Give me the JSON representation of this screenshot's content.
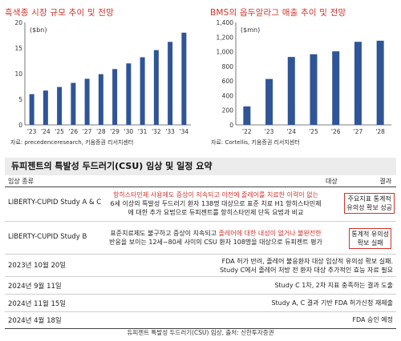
{
  "chart_data": [
    {
      "type": "bar",
      "title": "흑색종 시장 규모 추이 및 전망",
      "unit_label": "($bn)",
      "categories": [
        "'23",
        "'24",
        "'25",
        "'26",
        "'27",
        "'28",
        "'29",
        "'30",
        "'31",
        "'32",
        "'33",
        "'34"
      ],
      "values": [
        6.0,
        6.7,
        7.4,
        8.2,
        9.0,
        9.9,
        10.9,
        12.0,
        13.2,
        14.6,
        16.2,
        18.0
      ],
      "ylim": [
        0,
        20
      ],
      "yticks": [
        0,
        5,
        10,
        15,
        20
      ],
      "bar_color": "#2f5597",
      "source": "자료: precedenceresearch, 키움증권 리서치센터"
    },
    {
      "type": "bar",
      "title": "BMS의 옵두알라그 매출 추이 및 전망",
      "unit_label": "($mn)",
      "categories": [
        "'22",
        "'23",
        "'24",
        "'25",
        "'26",
        "'27",
        "'28"
      ],
      "values": [
        252,
        627,
        928,
        965,
        1005,
        1135,
        1150
      ],
      "ylim": [
        0,
        1400
      ],
      "yticks": [
        0,
        200,
        400,
        600,
        800,
        1000,
        1200,
        1400
      ],
      "bar_color": "#2f5597",
      "source": "자료: Cortellis, 키움증권 리서치센터"
    }
  ],
  "section": {
    "title": "듀피젠트의 특발성 두드러기(CSU) 임상 및 일정 요약",
    "headers": {
      "name": "임상 종류",
      "target": "대상",
      "result": "결과"
    },
    "study_a": {
      "name": "LIBERTY-CUPID Study A & C",
      "line1": "항히스타민제 사용에도 증상이 지속되고 이전에 졸레어를 치료한 이력이 없는",
      "line2": "6세 이상의 특발성 두드러기 환자 138명 대상으로 표준 치료 H1 항히스타민제",
      "line3": "에 대한 추가 요법으로 듀피젠트를 항히스타민제 단독 요법과 비교",
      "result1": "주요지표 통계적",
      "result2": "유의성 확보 성공"
    },
    "study_b": {
      "name": "LIBERTY-CUPID Study B",
      "line1a": "표준치료제도 불구하고 증상이 지속되고 ",
      "line1b": "졸레어에 대한 내성이 없거나 불완전한",
      "line2": "반응을 보이는 12세~80세 사이의 CSU 환자 108명을 대상으로 듀피젠트 평가",
      "result1": "통계적 유의성",
      "result2": "확보 실패"
    },
    "events": [
      {
        "date": "2023년 10월 20일",
        "line1": "FDA 허가 반려, 졸레어 불응환자 대상 임상적 유의성 확보 실패.",
        "line2": "Study C에서 졸레어 처방 전 환자 대상 추가적인 효능 자료 필요"
      },
      {
        "date": "2024년 9월 11일",
        "line1": "Study C 1차, 2차 지표 충족하는 결과 도출"
      },
      {
        "date": "2024년 11월 15일",
        "line1": "Study A, C 결과 기반 FDA 허가신청 재제출"
      },
      {
        "date": "2024년 4월 18일",
        "line1": "FDA 승인 예정"
      }
    ],
    "caption": "듀피젠트 특발성 두드러기(CSU) 임상, 출처: 신한투자증권"
  }
}
